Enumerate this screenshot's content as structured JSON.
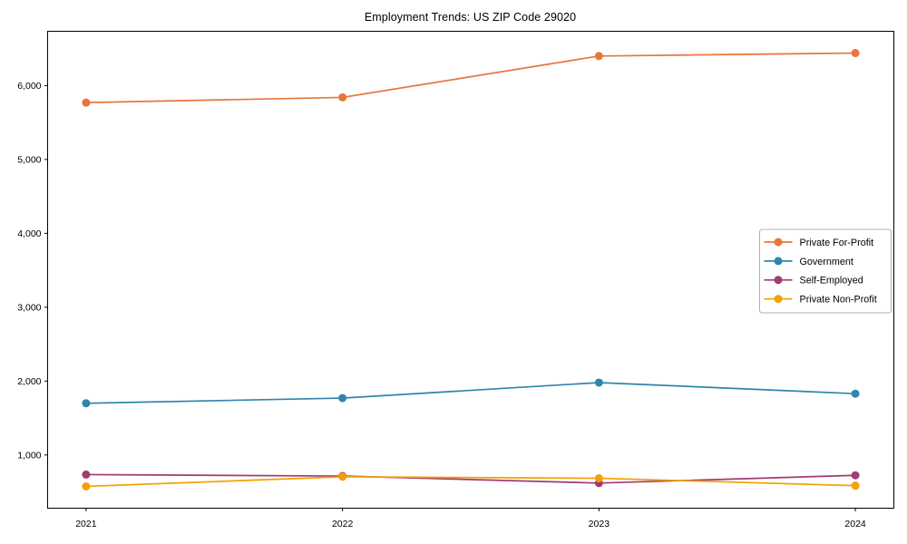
{
  "title": "Employment Trends: US ZIP Code 29020",
  "chart_data": {
    "type": "line",
    "title": "Employment Trends: US ZIP Code 29020",
    "x": [
      2021,
      2022,
      2023,
      2024
    ],
    "x_tick_labels": [
      "2021",
      "2022",
      "2023",
      "2024"
    ],
    "y_ticks": [
      1000,
      2000,
      3000,
      4000,
      5000,
      6000
    ],
    "y_tick_labels": [
      "1,000",
      "2,000",
      "3,000",
      "4,000",
      "5,000",
      "6,000"
    ],
    "xlim": [
      2020.85,
      2024.15
    ],
    "ylim": [
      280,
      6735
    ],
    "grid": false,
    "legend_position": "center-right",
    "series": [
      {
        "name": "Private For-Profit",
        "color": "#E8763B",
        "values": [
          5770,
          5840,
          6400,
          6440
        ]
      },
      {
        "name": "Government",
        "color": "#2E86AB",
        "values": [
          1700,
          1770,
          1980,
          1830
        ]
      },
      {
        "name": "Self-Employed",
        "color": "#A23B72",
        "values": [
          735,
          715,
          620,
          725
        ]
      },
      {
        "name": "Private Non-Profit",
        "color": "#F2A104",
        "values": [
          575,
          705,
          685,
          585
        ]
      }
    ]
  },
  "axes": {
    "spine_color": "#000000",
    "tick_color": "#000000",
    "tick_label_color": "#000000"
  },
  "legend": {
    "background": "#ffffff",
    "border_color": "#b0b0b0"
  }
}
